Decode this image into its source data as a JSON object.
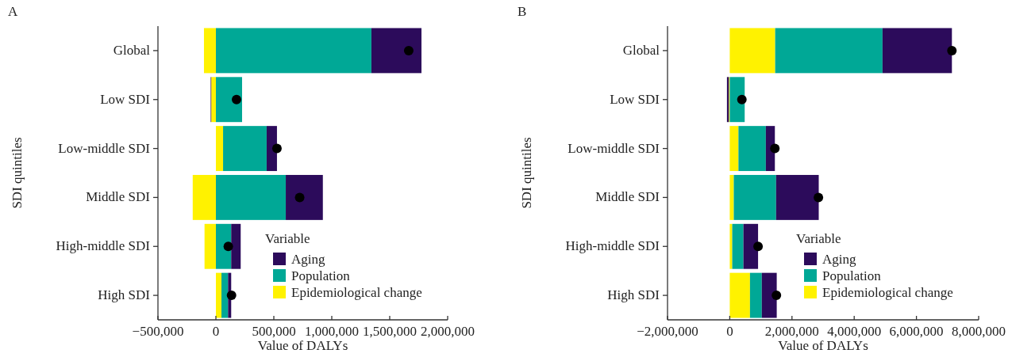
{
  "chart_data": [
    {
      "type": "bar",
      "title": "A",
      "orientation": "horizontal",
      "stacked": true,
      "xlabel": "Value of DALYs",
      "ylabel": "SDI quintiles",
      "legend_title": "Variable",
      "legend": "bottom right",
      "categories": [
        "Global",
        "Low SDI",
        "Low-middle SDI",
        "Middle SDI",
        "High-middle SDI",
        "High SDI"
      ],
      "xlim": [
        -500000,
        2000000
      ],
      "xticks": [
        {
          "value": -500000,
          "label": "−500,000"
        },
        0,
        {
          "value": 500000,
          "label": "500,000"
        },
        {
          "value": 1000000,
          "label": "1,000,000"
        },
        {
          "value": 1500000,
          "label": "1,500,000"
        },
        {
          "value": 2000000,
          "label": "2,000,000"
        }
      ],
      "series": [
        {
          "name": "Epidemiological change",
          "color": "#fff200",
          "values": [
            -103000,
            -40000,
            62000,
            -200000,
            -98000,
            48000
          ]
        },
        {
          "name": "Population",
          "color": "#00a896",
          "values": [
            1342000,
            226000,
            376000,
            603000,
            132000,
            57000
          ]
        },
        {
          "name": "Aging",
          "color": "#2c0b5b",
          "values": [
            432000,
            -5000,
            89000,
            320000,
            82000,
            27000
          ]
        },
        {
          "type": "scatter",
          "marker": "circle",
          "color": "#000000",
          "x": [
            "Global",
            "Low SDI",
            "Low-middle SDI",
            "Middle SDI",
            "High-middle SDI",
            "High SDI"
          ],
          "values": [
            1664000,
            178000,
            527000,
            723000,
            107000,
            135000
          ]
        }
      ]
    },
    {
      "type": "bar",
      "title": "B",
      "orientation": "horizontal",
      "stacked": true,
      "xlabel": "Value of DALYs",
      "ylabel": "SDI quintiles",
      "legend_title": "Variable",
      "legend": "bottom right",
      "categories": [
        "Global",
        "Low SDI",
        "Low-middle SDI",
        "Middle SDI",
        "High-middle SDI",
        "High SDI"
      ],
      "xlim": [
        -2000000,
        8000000
      ],
      "xticks": [
        {
          "value": -2000000,
          "label": "−2,000,000"
        },
        0,
        {
          "value": 2000000,
          "label": "2,000,000"
        },
        {
          "value": 4000000,
          "label": "4,000,000"
        },
        {
          "value": 6000000,
          "label": "6,000,000"
        },
        {
          "value": 8000000,
          "label": "8,000,000"
        }
      ],
      "series": [
        {
          "name": "Epidemiological change",
          "color": "#fff200",
          "values": [
            1460000,
            -30000,
            280000,
            130000,
            80000,
            650000
          ]
        },
        {
          "name": "Population",
          "color": "#00a896",
          "values": [
            3450000,
            480000,
            880000,
            1360000,
            360000,
            380000
          ]
        },
        {
          "name": "Aging",
          "color": "#2c0b5b",
          "values": [
            2230000,
            -60000,
            290000,
            1370000,
            470000,
            480000
          ]
        },
        {
          "type": "scatter",
          "marker": "circle",
          "color": "#000000",
          "x": [
            "Global",
            "Low SDI",
            "Low-middle SDI",
            "Middle SDI",
            "High-middle SDI",
            "High SDI"
          ],
          "values": [
            7140000,
            390000,
            1450000,
            2850000,
            910000,
            1500000
          ]
        }
      ]
    }
  ]
}
